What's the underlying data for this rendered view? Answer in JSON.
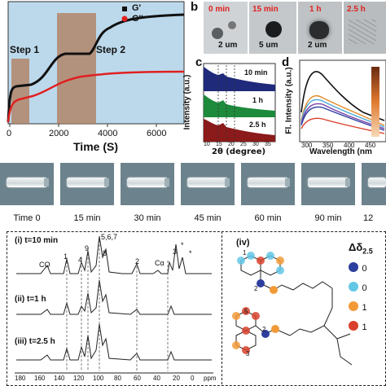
{
  "panel_a": {
    "legend": [
      "G'",
      "G''"
    ],
    "step1": "Step 1",
    "step2": "Step 2",
    "xlabel": "Time (S)",
    "xticks": [
      "0",
      "2000",
      "4000",
      "6000"
    ]
  },
  "panel_b": {
    "letter": "b",
    "times": [
      "0 min",
      "15 min",
      "1 h",
      "2.5 h"
    ],
    "scales": [
      "2 um",
      "5 um",
      "2 um"
    ]
  },
  "panel_c": {
    "letter": "c",
    "ylabel": "Intensity (a.u.)",
    "xlabel": "2θ (degree)",
    "xticks": [
      "10",
      "15",
      "20",
      "25",
      "30",
      "35"
    ],
    "series_labels": [
      "10 min",
      "1 h",
      "2.5 h"
    ],
    "colors": [
      "#1f2a7a",
      "#1e8a3c",
      "#8b1a1a"
    ]
  },
  "panel_d": {
    "letter": "d",
    "ylabel": "Fl. Intensity (a.u.)",
    "xlabel": "Wavelength (nm",
    "xticks": [
      "300",
      "350",
      "400",
      "450"
    ]
  },
  "tubes": {
    "labels": [
      "Time 0",
      "15 min",
      "30 min",
      "45 min",
      "60 min",
      "90 min",
      "12"
    ]
  },
  "nmr": {
    "traces": [
      "(i) t=10 min",
      "(ii) t=1 h",
      "(iii) t=2.5 h"
    ],
    "peaks": [
      "CO",
      "1",
      "4",
      "9",
      "5,6,7",
      "8",
      "2",
      "Cα",
      "3",
      "*",
      "*"
    ],
    "xticks": [
      "180",
      "160",
      "140",
      "120",
      "100",
      "80",
      "60",
      "40",
      "20",
      "0"
    ],
    "unit": "ppm",
    "panel_iv": "(iv)",
    "delta_label": "Δδ",
    "delta_sub": "2.5",
    "legend_items": [
      "0",
      "0",
      "1",
      "1"
    ],
    "legend_colors": [
      "#2c3e9e",
      "#63c7e6",
      "#f29a38",
      "#d9412c"
    ],
    "mol_numbers": [
      "2",
      "1",
      "5",
      "2",
      "3"
    ]
  }
}
